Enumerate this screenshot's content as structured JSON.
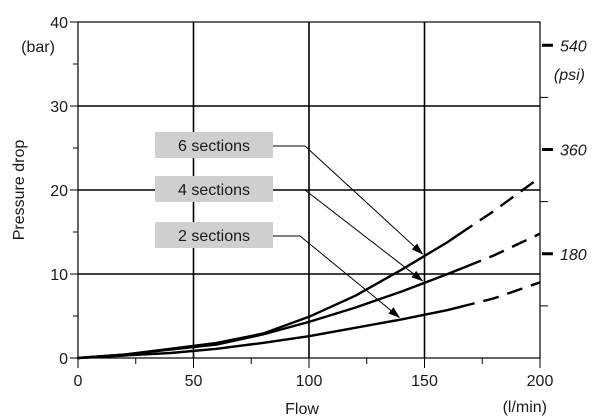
{
  "chart_data": {
    "type": "line",
    "title": "",
    "xlabel": "Flow",
    "x_unit": "(l/min)",
    "ylabel": "Pressure drop",
    "y_unit": "(bar)",
    "y2_unit": "(psi)",
    "xlim": [
      0,
      200
    ],
    "ylim": [
      0,
      40
    ],
    "x_ticks": [
      0,
      50,
      100,
      150,
      200
    ],
    "y_ticks": [
      0,
      10,
      20,
      30,
      40
    ],
    "y2_ticks": [
      180,
      360,
      540
    ],
    "grid": true,
    "series": [
      {
        "name": "6 sections",
        "x": [
          0,
          20,
          40,
          60,
          80,
          100,
          120,
          140,
          160,
          180,
          200
        ],
        "y": [
          0,
          0.4,
          1.1,
          1.8,
          2.9,
          4.9,
          7.4,
          10.5,
          13.8,
          17.5,
          21.5
        ],
        "dashed_from_x": 165
      },
      {
        "name": "4 sections",
        "x": [
          0,
          20,
          40,
          60,
          80,
          100,
          120,
          140,
          160,
          180,
          200
        ],
        "y": [
          0,
          0.4,
          1.0,
          1.6,
          2.8,
          4.3,
          6.0,
          7.9,
          10.0,
          12.2,
          14.8
        ],
        "dashed_from_x": 168
      },
      {
        "name": "2 sections",
        "x": [
          0,
          20,
          40,
          60,
          80,
          100,
          120,
          140,
          160,
          180,
          200
        ],
        "y": [
          0,
          0.3,
          0.6,
          1.1,
          1.8,
          2.6,
          3.6,
          4.6,
          5.7,
          7.1,
          9.0
        ],
        "dashed_from_x": 165
      }
    ]
  }
}
